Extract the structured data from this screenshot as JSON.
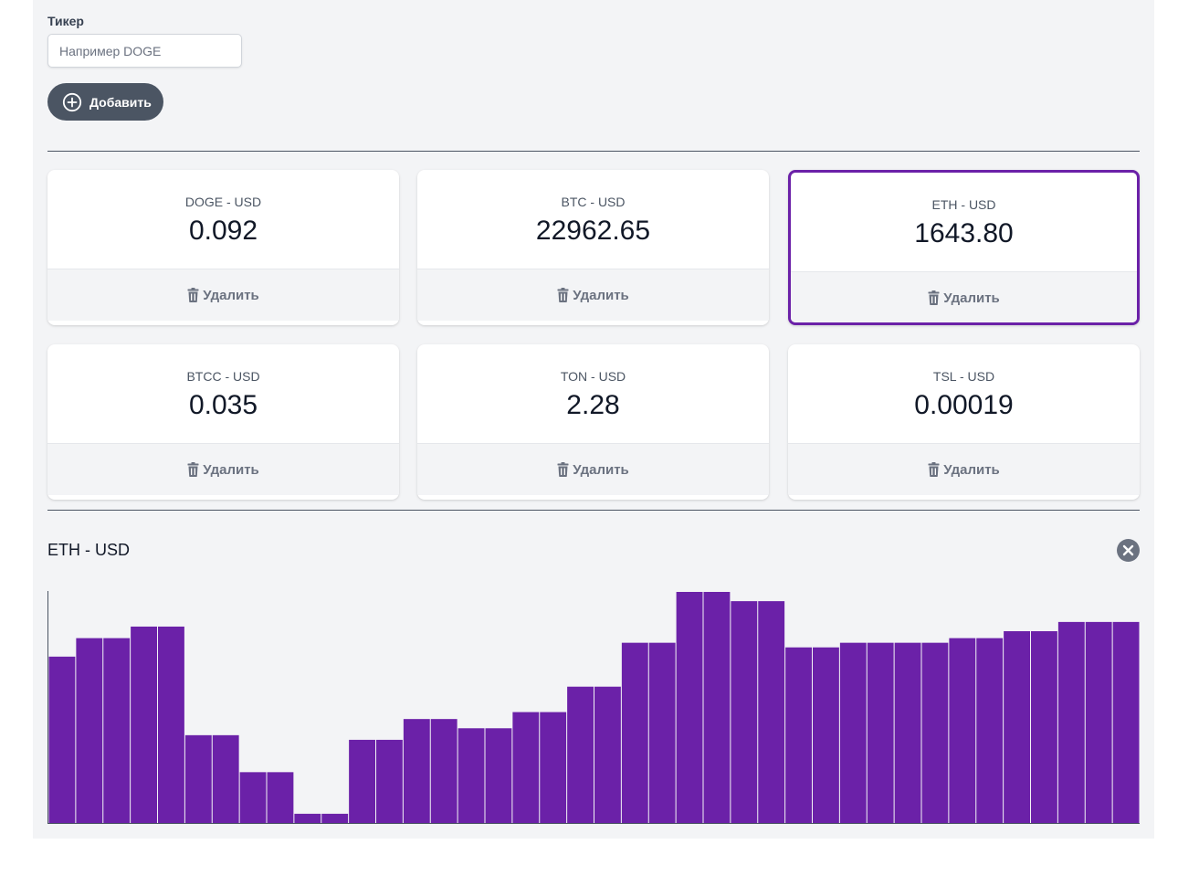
{
  "form": {
    "ticker_label": "Тикер",
    "ticker_placeholder": "Например DOGE",
    "ticker_value": "",
    "add_label": "Добавить"
  },
  "colors": {
    "accent": "#6b21a8",
    "button_bg": "#4b5563",
    "background": "#f3f4f6"
  },
  "tickers": [
    {
      "name": "DOGE - USD",
      "price": "0.092",
      "delete_label": "Удалить",
      "selected": false
    },
    {
      "name": "BTC - USD",
      "price": "22962.65",
      "delete_label": "Удалить",
      "selected": false
    },
    {
      "name": "ETH - USD",
      "price": "1643.80",
      "delete_label": "Удалить",
      "selected": true
    },
    {
      "name": "BTCC - USD",
      "price": "0.035",
      "delete_label": "Удалить",
      "selected": false
    },
    {
      "name": "TON - USD",
      "price": "2.28",
      "delete_label": "Удалить",
      "selected": false
    },
    {
      "name": "TSL - USD",
      "price": "0.00019",
      "delete_label": "Удалить",
      "selected": false
    }
  ],
  "chart": {
    "title": "ETH - USD",
    "close_icon": "close-icon"
  },
  "chart_data": {
    "type": "bar",
    "title": "ETH - USD",
    "xlabel": "",
    "ylabel": "",
    "ylim": [
      0,
      100
    ],
    "values": [
      72,
      80,
      80,
      85,
      85,
      38,
      38,
      22,
      22,
      4,
      4,
      36,
      36,
      45,
      45,
      41,
      41,
      48,
      48,
      59,
      59,
      78,
      78,
      100,
      100,
      96,
      96,
      76,
      76,
      78,
      78,
      78,
      78,
      80,
      80,
      83,
      83,
      87,
      87,
      87
    ]
  }
}
